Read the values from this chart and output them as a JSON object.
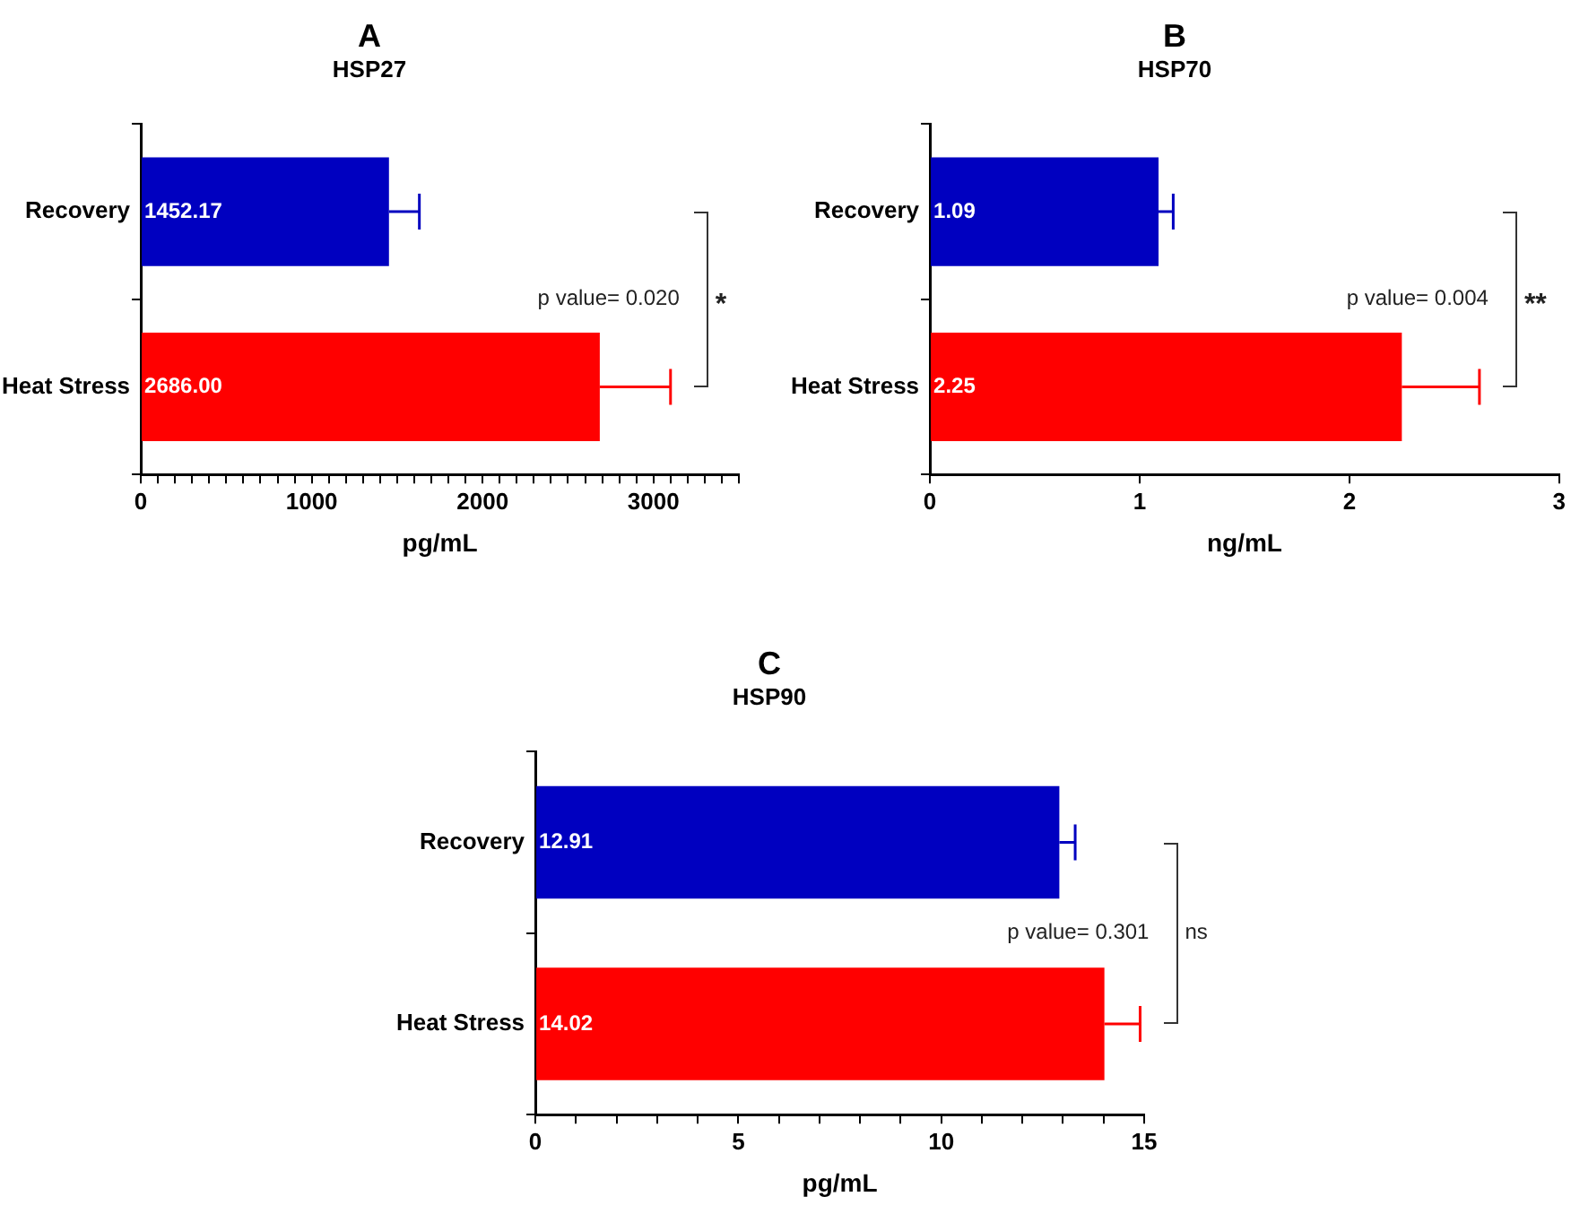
{
  "chart_data": [
    {
      "type": "bar",
      "orientation": "horizontal",
      "title": "A",
      "subtitle": "HSP27",
      "xlabel": "pg/mL",
      "categories": [
        "Recovery",
        "Heat Stress"
      ],
      "values": [
        1452.17,
        2686.0
      ],
      "colors": [
        "#0000c0",
        "#ff0000"
      ],
      "errors": [
        [
          1452.17,
          1630
        ],
        [
          2686.0,
          3100
        ]
      ],
      "value_labels": [
        "1452.17",
        "2686.00"
      ],
      "xlim": [
        0,
        3500
      ],
      "xticks": [
        0,
        {
          "value": 100,
          "label": null
        },
        {
          "value": 200,
          "label": null
        },
        {
          "value": 300,
          "label": null
        },
        {
          "value": 400,
          "label": null
        },
        {
          "value": 500,
          "label": null
        },
        {
          "value": 600,
          "label": null
        },
        {
          "value": 700,
          "label": null
        },
        {
          "value": 800,
          "label": null
        },
        {
          "value": 900,
          "label": null
        },
        1000,
        {
          "value": 1100,
          "label": null
        },
        {
          "value": 1200,
          "label": null
        },
        {
          "value": 1300,
          "label": null
        },
        {
          "value": 1400,
          "label": null
        },
        {
          "value": 1500,
          "label": null
        },
        {
          "value": 1600,
          "label": null
        },
        {
          "value": 1700,
          "label": null
        },
        {
          "value": 1800,
          "label": null
        },
        {
          "value": 1900,
          "label": null
        },
        2000,
        {
          "value": 2100,
          "label": null
        },
        {
          "value": 2200,
          "label": null
        },
        {
          "value": 2300,
          "label": null
        },
        {
          "value": 2400,
          "label": null
        },
        {
          "value": 2500,
          "label": null
        },
        {
          "value": 2600,
          "label": null
        },
        {
          "value": 2700,
          "label": null
        },
        {
          "value": 2800,
          "label": null
        },
        {
          "value": 2900,
          "label": null
        },
        3000,
        {
          "value": 3100,
          "label": null
        },
        {
          "value": 3200,
          "label": null
        },
        {
          "value": 3300,
          "label": null
        },
        {
          "value": 3400,
          "label": null
        },
        {
          "value": 3500,
          "label": null
        }
      ],
      "annotations": [
        "p value= 0.020",
        "*"
      ],
      "grid": false,
      "legend": false
    },
    {
      "type": "bar",
      "orientation": "horizontal",
      "title": "B",
      "subtitle": "HSP70",
      "xlabel": "ng/mL",
      "categories": [
        "Recovery",
        "Heat Stress"
      ],
      "values": [
        1.09,
        2.25
      ],
      "colors": [
        "#0000c0",
        "#ff0000"
      ],
      "errors": [
        [
          1.09,
          1.16
        ],
        [
          2.25,
          2.62
        ]
      ],
      "value_labels": [
        "1.09",
        "2.25"
      ],
      "xlim": [
        0,
        3
      ],
      "xticks": [
        0,
        1,
        2,
        3
      ],
      "annotations": [
        "p value= 0.004",
        "**"
      ],
      "grid": false,
      "legend": false
    },
    {
      "type": "bar",
      "orientation": "horizontal",
      "title": "C",
      "subtitle": "HSP90",
      "xlabel": "pg/mL",
      "categories": [
        "Recovery",
        "Heat Stress"
      ],
      "values": [
        12.91,
        14.02
      ],
      "colors": [
        "#0000c0",
        "#ff0000"
      ],
      "errors": [
        [
          12.91,
          13.3
        ],
        [
          14.02,
          14.9
        ]
      ],
      "value_labels": [
        "12.91",
        "14.02"
      ],
      "xlim": [
        0,
        15
      ],
      "xticks": [
        0,
        {
          "value": 1,
          "label": null
        },
        {
          "value": 2,
          "label": null
        },
        {
          "value": 3,
          "label": null
        },
        {
          "value": 4,
          "label": null
        },
        5,
        {
          "value": 6,
          "label": null
        },
        {
          "value": 7,
          "label": null
        },
        {
          "value": 8,
          "label": null
        },
        {
          "value": 9,
          "label": null
        },
        10,
        {
          "value": 11,
          "label": null
        },
        {
          "value": 12,
          "label": null
        },
        {
          "value": 13,
          "label": null
        },
        {
          "value": 14,
          "label": null
        },
        15
      ],
      "annotations": [
        "p value= 0.301",
        "ns"
      ],
      "grid": false,
      "legend": false
    }
  ]
}
